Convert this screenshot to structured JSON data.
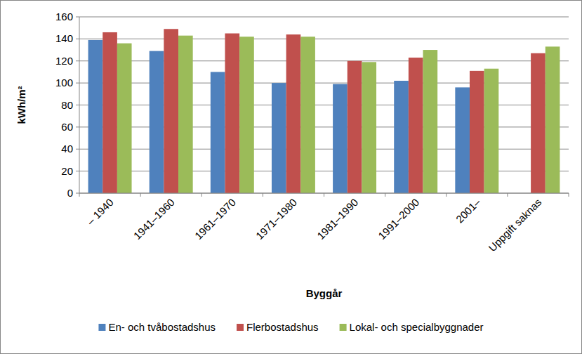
{
  "chart_data": {
    "type": "bar",
    "y_label": "kWh/m²",
    "x_label": "Byggår",
    "categories": [
      "– 1940",
      "1941–1960",
      "1961–1970",
      "1971–1980",
      "1981–1990",
      "1991–2000",
      "2001–",
      "Uppgift saknas"
    ],
    "series": [
      {
        "name": "En- och tvåbostadshus",
        "color": "#4f81bd",
        "values": [
          139,
          129,
          110,
          100,
          99,
          102,
          96,
          null
        ]
      },
      {
        "name": "Flerbostadshus",
        "color": "#c0504d",
        "values": [
          146,
          149,
          145,
          144,
          120,
          123,
          111,
          127
        ]
      },
      {
        "name": "Lokal- och specialbyggnader",
        "color": "#9bbb59",
        "values": [
          136,
          143,
          142,
          142,
          119,
          130,
          113,
          133
        ]
      }
    ],
    "ylim": [
      0,
      160
    ],
    "yticks": [
      0,
      20,
      40,
      60,
      80,
      100,
      120,
      140,
      160
    ],
    "grid": true,
    "legend": "bottom"
  }
}
